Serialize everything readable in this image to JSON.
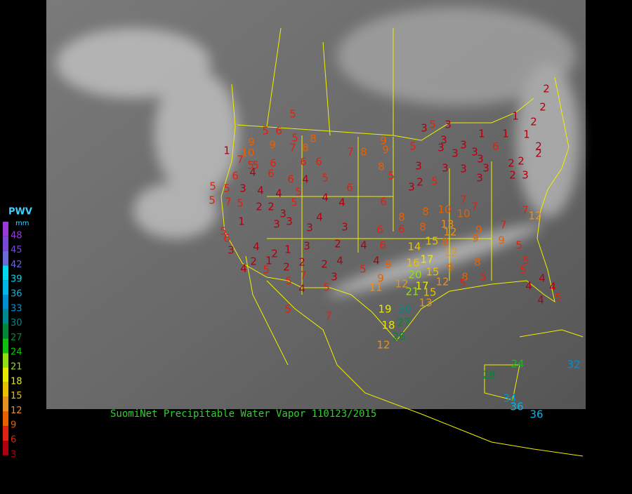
{
  "caption": "SuomiNet Precipitable Water Vapor 110123/2015",
  "legend": {
    "title": "PWV",
    "unit": "mm",
    "items": [
      {
        "label": 48,
        "color": "#9a3ad8"
      },
      {
        "label": 45,
        "color": "#7a48d8"
      },
      {
        "label": 42,
        "color": "#6a6ad8"
      },
      {
        "label": 39,
        "color": "#00d8f0"
      },
      {
        "label": 36,
        "color": "#00b8e8"
      },
      {
        "label": 33,
        "color": "#0090d0"
      },
      {
        "label": 30,
        "color": "#008890"
      },
      {
        "label": 27,
        "color": "#008838"
      },
      {
        "label": 24,
        "color": "#10c010"
      },
      {
        "label": 21,
        "color": "#90e010"
      },
      {
        "label": 18,
        "color": "#e8e800"
      },
      {
        "label": 15,
        "color": "#e8c000"
      },
      {
        "label": 12,
        "color": "#e89020"
      },
      {
        "label": 9,
        "color": "#e86000"
      },
      {
        "label": 6,
        "color": "#e02010"
      },
      {
        "label": 3,
        "color": "#b00010"
      }
    ]
  },
  "stations": [
    5,
    5,
    6,
    5,
    8,
    9,
    9,
    7,
    8,
    1,
    10,
    7,
    5,
    6,
    6,
    6,
    7,
    8,
    9,
    9,
    8,
    5,
    5,
    5,
    3,
    3,
    3,
    1,
    1,
    1,
    2,
    2,
    2,
    1,
    2,
    2,
    6,
    3,
    3,
    3,
    3,
    3,
    3,
    3,
    3,
    3,
    2,
    2,
    2,
    3,
    3,
    2,
    3,
    5,
    6,
    4,
    5,
    6,
    6,
    4,
    5,
    6,
    5,
    5,
    3,
    4,
    4,
    5,
    4,
    4,
    5,
    7,
    5,
    2,
    2,
    3,
    5,
    6,
    1,
    3,
    3,
    4,
    3,
    3,
    8,
    8,
    10,
    10,
    7,
    7,
    6,
    6,
    8,
    13,
    12,
    9,
    7,
    7,
    12,
    5,
    6,
    4,
    2,
    1,
    3,
    2,
    4,
    6,
    14,
    15,
    8,
    9,
    9,
    5,
    3,
    2,
    1,
    2,
    2,
    2,
    4,
    4,
    9,
    16,
    17,
    12,
    8,
    5,
    4,
    5,
    5,
    7,
    3,
    5,
    20,
    15,
    9,
    8,
    5,
    5,
    4,
    4,
    5,
    11,
    9,
    12,
    21,
    17,
    12,
    5,
    4,
    4,
    4,
    5,
    15,
    13,
    5,
    7,
    19,
    30,
    18,
    27,
    12,
    26,
    28,
    24,
    32,
    34,
    36,
    36
  ]
}
